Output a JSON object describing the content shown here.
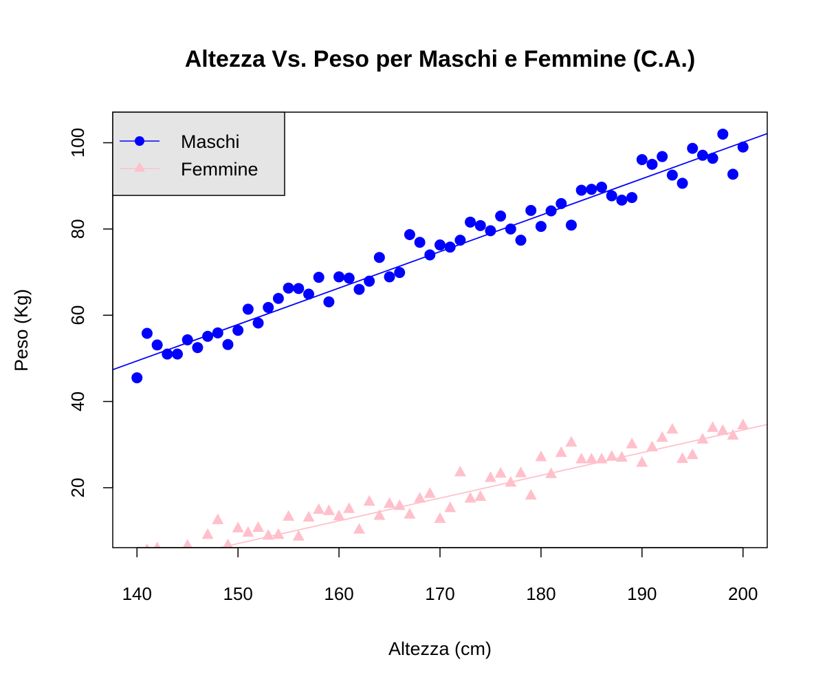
{
  "chart_data": {
    "type": "scatter",
    "title": "Altezza Vs. Peso per Maschi e Femmine (C.A.)",
    "xlabel": "Altezza (cm)",
    "ylabel": "Peso (Kg)",
    "xlim": [
      137.6,
      202.4
    ],
    "ylim": [
      6.1,
      107.1
    ],
    "x_ticks": [
      140,
      150,
      160,
      170,
      180,
      190,
      200
    ],
    "y_ticks": [
      20,
      40,
      60,
      80,
      100
    ],
    "grid": false,
    "legend_position": "top-left",
    "series": [
      {
        "name": "Maschi",
        "color": "#0000ff",
        "marker": "circle",
        "fit_line": {
          "intercept": -68.9,
          "slope": 0.845
        },
        "x": [
          140,
          141,
          142,
          143,
          144,
          145,
          146,
          147,
          148,
          149,
          150,
          151,
          152,
          153,
          154,
          155,
          156,
          157,
          158,
          159,
          160,
          161,
          162,
          163,
          164,
          165,
          166,
          167,
          168,
          169,
          170,
          171,
          172,
          173,
          174,
          175,
          176,
          177,
          178,
          179,
          180,
          181,
          182,
          183,
          184,
          185,
          186,
          187,
          188,
          189,
          190,
          191,
          192,
          193,
          194,
          195,
          196,
          197,
          198,
          199,
          200
        ],
        "y": [
          45.5,
          55.8,
          53.1,
          51.0,
          51.0,
          54.3,
          52.5,
          55.1,
          55.9,
          53.2,
          56.5,
          61.4,
          58.2,
          61.8,
          63.9,
          66.3,
          66.2,
          64.9,
          68.8,
          63.1,
          68.9,
          68.6,
          66.0,
          67.9,
          73.4,
          68.9,
          69.9,
          78.7,
          76.9,
          74.0,
          76.3,
          75.8,
          77.4,
          81.6,
          80.8,
          79.6,
          83.0,
          80.0,
          77.4,
          84.3,
          80.6,
          84.2,
          85.9,
          80.9,
          89.0,
          89.2,
          89.7,
          87.7,
          86.7,
          87.3,
          96.1,
          95.0,
          96.8,
          92.5,
          90.6,
          98.7,
          97.1,
          96.4,
          102.0,
          92.7,
          99.0
        ]
      },
      {
        "name": "Femmine",
        "color": "#ffc0cb",
        "marker": "triangle",
        "fit_line": {
          "intercept": -72.0,
          "slope": 0.527
        },
        "x": [
          141,
          142,
          145,
          147,
          148,
          149,
          150,
          151,
          152,
          153,
          154,
          155,
          156,
          157,
          158,
          159,
          160,
          161,
          162,
          163,
          164,
          165,
          166,
          167,
          168,
          169,
          170,
          171,
          172,
          173,
          174,
          175,
          176,
          177,
          178,
          179,
          180,
          181,
          182,
          183,
          184,
          185,
          186,
          187,
          188,
          189,
          190,
          191,
          192,
          193,
          194,
          195,
          196,
          197,
          198,
          199,
          200
        ],
        "y": [
          5.6,
          6.0,
          6.6,
          9.1,
          12.5,
          6.7,
          10.6,
          9.6,
          10.7,
          8.9,
          9.1,
          13.3,
          8.7,
          13.1,
          14.9,
          14.6,
          13.4,
          15.1,
          10.3,
          16.8,
          13.5,
          16.3,
          15.8,
          13.8,
          17.5,
          18.6,
          12.8,
          15.3,
          23.6,
          17.5,
          17.9,
          22.3,
          23.3,
          21.2,
          23.4,
          18.2,
          27.1,
          23.2,
          28.1,
          30.5,
          26.6,
          26.6,
          26.6,
          27.2,
          27.0,
          30.1,
          25.8,
          29.4,
          31.6,
          33.5,
          26.7,
          27.6,
          31.2,
          33.9,
          33.2,
          32.1,
          34.5
        ]
      }
    ]
  }
}
